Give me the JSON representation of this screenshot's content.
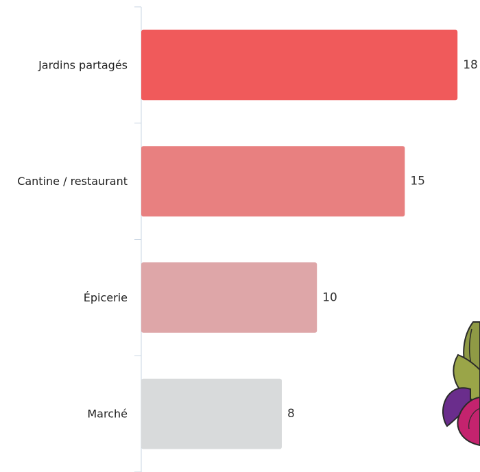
{
  "chart_data": {
    "type": "bar",
    "orientation": "horizontal",
    "title": "",
    "xlabel": "",
    "ylabel": "",
    "categories": [
      "Jardins partagés",
      "Cantine / restaurant",
      "Épicerie",
      "Marché"
    ],
    "values": [
      18,
      15,
      10,
      8
    ],
    "colors": [
      "#f05a5b",
      "#e88080",
      "#dea6a8",
      "#d8dadb"
    ],
    "xlim": [
      0,
      18.5
    ],
    "grid": false,
    "legend": "none"
  },
  "decoration": {
    "icon": "beet-vegetable-icon",
    "leaf_color": "#8f9a45",
    "root_colors": [
      "#6a2d8c",
      "#c4236e"
    ]
  }
}
